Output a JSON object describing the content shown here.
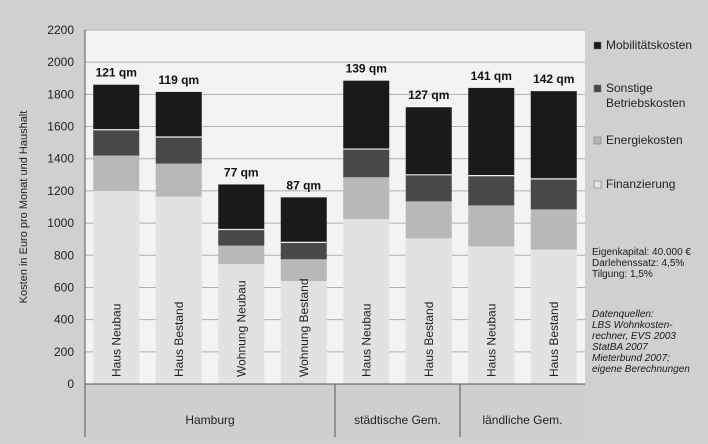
{
  "chart_data": {
    "type": "bar",
    "stacked": true,
    "ylabel": "Kosten in Euro pro Monat und Haushalt",
    "ylim": [
      0,
      2200
    ],
    "yticks": [
      0,
      200,
      400,
      600,
      800,
      1000,
      1200,
      1400,
      1600,
      1800,
      2000,
      2200
    ],
    "grid": true,
    "legend_position": "right",
    "categories": [
      "Haus Neubau",
      "Haus Bestand",
      "Wohnung Neubau",
      "Wohnung Bestand",
      "Haus Neubau",
      "Haus Bestand",
      "Haus Neubau",
      "Haus Bestand"
    ],
    "size_labels": [
      "121 qm",
      "119 qm",
      "77 qm",
      "87 qm",
      "139 qm",
      "127 qm",
      "141 qm",
      "142 qm"
    ],
    "groups": [
      {
        "label": "Hamburg",
        "count": 4
      },
      {
        "label": "städtische Gem.",
        "count": 2
      },
      {
        "label": "ländliche Gem.",
        "count": 2
      }
    ],
    "series": [
      {
        "name": "Finanzierung",
        "color": "#e2e2e2",
        "values": [
          1200,
          1165,
          745,
          640,
          1025,
          905,
          855,
          835
        ]
      },
      {
        "name": "Energiekosten",
        "color": "#b8b8b8",
        "values": [
          220,
          205,
          115,
          135,
          260,
          230,
          255,
          250
        ]
      },
      {
        "name": "Sonstige Betriebskosten",
        "color": "#484848",
        "values": [
          160,
          165,
          100,
          105,
          175,
          165,
          185,
          190
        ]
      },
      {
        "name": "Mobilitätskosten",
        "color": "#1a1a1a",
        "values": [
          280,
          280,
          280,
          280,
          425,
          420,
          545,
          545
        ]
      }
    ],
    "legend_order": [
      "Mobilitätskosten",
      "Sonstige Betriebskosten",
      "Energiekosten",
      "Finanzierung"
    ],
    "annotations": {
      "assumptions": "Eigenkapital: 40.000 €\nDarlehenssatz: 4,5%\nTilgung: 1,5%",
      "sources": "Datenquellen:\nLBS Wohnkosten-\nrechner, EVS 2003\nStatBA 2007\nMieterbund 2007;\neigene Berechnungen"
    }
  }
}
